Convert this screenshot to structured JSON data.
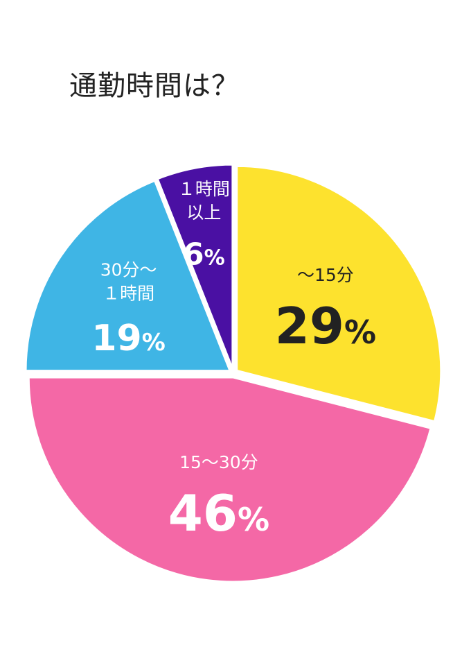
{
  "chart_data": {
    "type": "pie",
    "title": "通勤時間は？",
    "slices": [
      {
        "label": "〜15分",
        "label_lines": [
          "〜15分"
        ],
        "value": 29,
        "value_text": "29",
        "color": "#FDE22E",
        "text_color": "#222222"
      },
      {
        "label": "15〜30分",
        "label_lines": [
          "15〜30分"
        ],
        "value": 46,
        "value_text": "46",
        "color": "#F468A6",
        "text_color": "#FFFFFF"
      },
      {
        "label": "30分〜１時間",
        "label_lines": [
          "30分〜",
          "１時間"
        ],
        "value": 19,
        "value_text": "19",
        "color": "#3FB5E5",
        "text_color": "#FFFFFF"
      },
      {
        "label": "１時間以上",
        "label_lines": [
          "１時間",
          "以上"
        ],
        "value": 6,
        "value_text": "6",
        "color": "#4A10A3",
        "text_color": "#FFFFFF"
      }
    ],
    "percent_sign": "%",
    "start_angle": "12 o'clock",
    "direction": "clockwise",
    "exploded": true,
    "legend": "none"
  }
}
